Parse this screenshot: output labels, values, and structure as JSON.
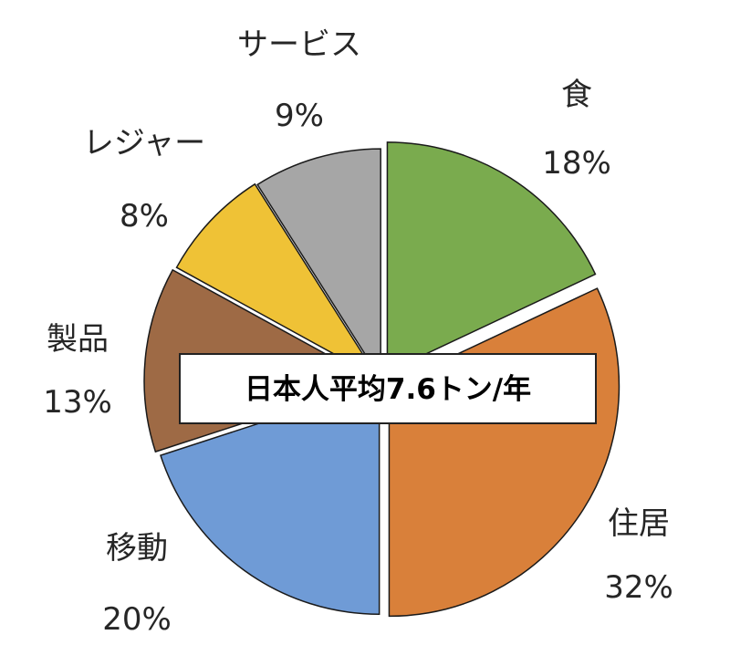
{
  "chart_data": {
    "type": "pie",
    "center_label": "日本人平均7.6トン/年",
    "slices": [
      {
        "name": "食",
        "value": 18,
        "pct_label": "18%",
        "color": "#7aab4e"
      },
      {
        "name": "住居",
        "value": 32,
        "pct_label": "32%",
        "color": "#d9803a"
      },
      {
        "name": "移動",
        "value": 20,
        "pct_label": "20%",
        "color": "#6f9bd6"
      },
      {
        "name": "製品",
        "value": 13,
        "pct_label": "13%",
        "color": "#9e6a45"
      },
      {
        "name": "レジャー",
        "value": 8,
        "pct_label": "8%",
        "color": "#efc236"
      },
      {
        "name": "サービス",
        "value": 9,
        "pct_label": "9%",
        "color": "#a6a6a6"
      }
    ],
    "legend": "none"
  }
}
